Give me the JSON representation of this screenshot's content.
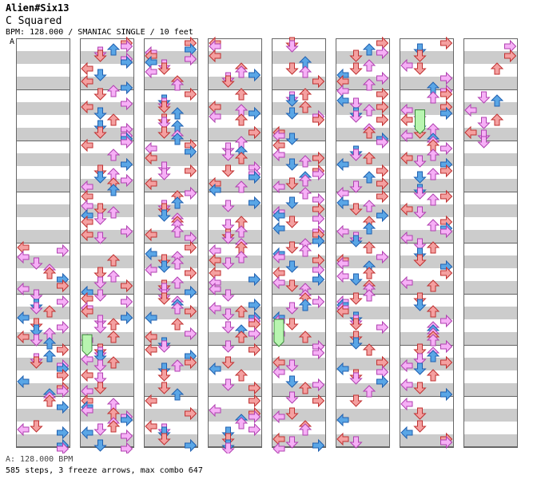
{
  "song": {
    "title": "Alien#Six13",
    "subtitle": "C Squared",
    "info": "BPM: 128.000 / SMANIAC SINGLE / 10 feet",
    "bpm_marker": "A",
    "bpm_footer": "A: 128.000 BPM",
    "stats": "585 steps, 3 freeze arrows, max combo 647"
  },
  "colors": {
    "quarter": "#f4a0a0",
    "eighth": "#5aa6e6",
    "sixteenth": "#f6b0f6",
    "freeze": "#b8f5b0",
    "stripe": "#cccccc"
  },
  "chart_data": {
    "type": "table",
    "note": "Step chart laid out as 8 columns of 8 measures; each measure is 16 sixteenth-note rows across 4 lanes (L D U R).",
    "columns": 8,
    "measures_per_column": 8,
    "lanes": [
      "left",
      "down",
      "up",
      "right"
    ],
    "step_count": 585,
    "freeze_count": 3,
    "max_combo": 647,
    "bpm": 128.0
  }
}
